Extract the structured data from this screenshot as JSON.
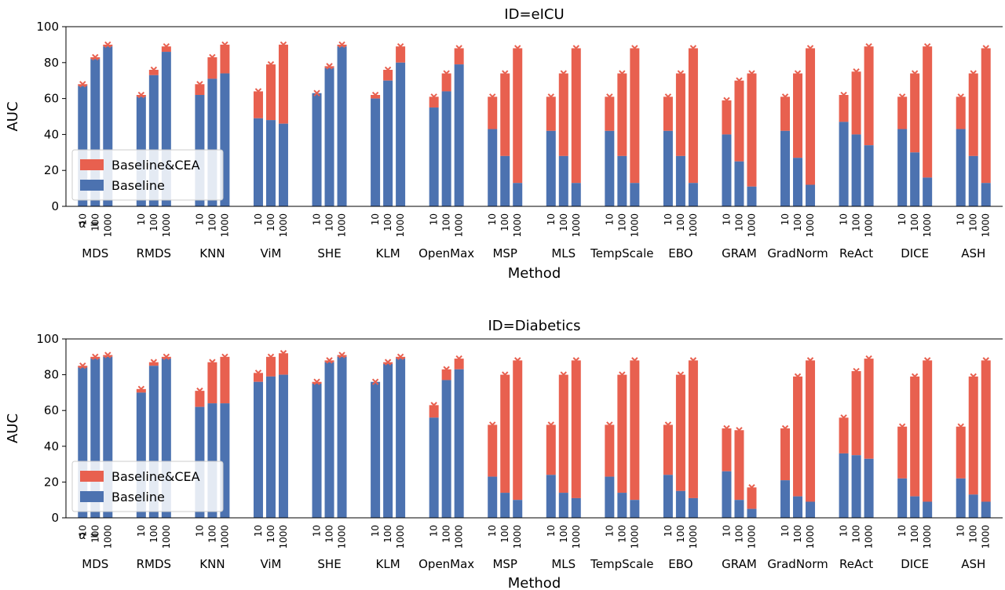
{
  "colors": {
    "baseline": "#4c72b0",
    "cea": "#e8604f",
    "marker": "#e8604f",
    "legend_edge": "#cccccc"
  },
  "chart_data": [
    {
      "type": "bar",
      "stacked": true,
      "title": "ID=eICU",
      "xlabel": "Method",
      "ylabel": "AUC",
      "ylim": [
        0,
        100
      ],
      "yticks": [
        0,
        20,
        40,
        60,
        80,
        100
      ],
      "alpha_prefix": "α =",
      "alphas": [
        "10",
        "100",
        "1000"
      ],
      "legend": {
        "position": "lower-left",
        "entries": [
          "Baseline&CEA",
          "Baseline"
        ]
      },
      "series": [
        {
          "name": "Baseline&CEA",
          "values": [
            [
              68,
              83,
              90
            ],
            [
              62,
              76,
              89
            ],
            [
              68,
              83,
              90
            ],
            [
              64,
              79,
              90
            ],
            [
              63,
              78,
              90
            ],
            [
              62,
              76,
              89
            ],
            [
              61,
              74,
              88
            ],
            [
              61,
              74,
              88
            ],
            [
              61,
              74,
              88
            ],
            [
              61,
              74,
              88
            ],
            [
              61,
              74,
              88
            ],
            [
              59,
              70,
              74
            ],
            [
              61,
              74,
              88
            ],
            [
              62,
              75,
              89
            ],
            [
              61,
              74,
              89
            ],
            [
              61,
              74,
              88
            ]
          ]
        },
        {
          "name": "Baseline",
          "values": [
            [
              67,
              82,
              89
            ],
            [
              61,
              73,
              86
            ],
            [
              62,
              71,
              74
            ],
            [
              49,
              48,
              46
            ],
            [
              63,
              77,
              89
            ],
            [
              60,
              70,
              80
            ],
            [
              55,
              64,
              79
            ],
            [
              43,
              28,
              13
            ],
            [
              42,
              28,
              13
            ],
            [
              42,
              28,
              13
            ],
            [
              42,
              28,
              13
            ],
            [
              40,
              25,
              11
            ],
            [
              42,
              27,
              12
            ],
            [
              47,
              40,
              34
            ],
            [
              43,
              30,
              16
            ],
            [
              43,
              28,
              13
            ]
          ]
        }
      ],
      "categories": [
        "MDS",
        "RMDS",
        "KNN",
        "ViM",
        "SHE",
        "KLM",
        "OpenMax",
        "MSP",
        "MLS",
        "TempScale",
        "EBO",
        "GRAM",
        "GradNorm",
        "ReAct",
        "DICE",
        "ASH"
      ]
    },
    {
      "type": "bar",
      "stacked": true,
      "title": "ID=Diabetics",
      "xlabel": "Method",
      "ylabel": "AUC",
      "ylim": [
        0,
        100
      ],
      "yticks": [
        0,
        20,
        40,
        60,
        80,
        100
      ],
      "alpha_prefix": "α =",
      "alphas": [
        "10",
        "100",
        "1000"
      ],
      "legend": {
        "position": "lower-left",
        "entries": [
          "Baseline&CEA",
          "Baseline"
        ]
      },
      "series": [
        {
          "name": "Baseline&CEA",
          "values": [
            [
              85,
              90,
              91
            ],
            [
              72,
              87,
              90
            ],
            [
              71,
              87,
              90
            ],
            [
              81,
              90,
              92
            ],
            [
              76,
              88,
              91
            ],
            [
              76,
              87,
              90
            ],
            [
              63,
              83,
              89
            ],
            [
              52,
              80,
              88
            ],
            [
              52,
              80,
              88
            ],
            [
              52,
              80,
              88
            ],
            [
              52,
              80,
              88
            ],
            [
              50,
              49,
              17
            ],
            [
              50,
              79,
              88
            ],
            [
              56,
              82,
              89
            ],
            [
              51,
              79,
              88
            ],
            [
              51,
              79,
              88
            ]
          ]
        },
        {
          "name": "Baseline",
          "values": [
            [
              84,
              89,
              90
            ],
            [
              70,
              85,
              89
            ],
            [
              62,
              64,
              64
            ],
            [
              76,
              79,
              80
            ],
            [
              75,
              87,
              90
            ],
            [
              76,
              86,
              89
            ],
            [
              56,
              77,
              83
            ],
            [
              23,
              14,
              10
            ],
            [
              24,
              14,
              11
            ],
            [
              23,
              14,
              10
            ],
            [
              24,
              15,
              11
            ],
            [
              26,
              10,
              5
            ],
            [
              21,
              12,
              9
            ],
            [
              36,
              35,
              33
            ],
            [
              22,
              12,
              9
            ],
            [
              22,
              13,
              9
            ]
          ]
        }
      ],
      "categories": [
        "MDS",
        "RMDS",
        "KNN",
        "ViM",
        "SHE",
        "KLM",
        "OpenMax",
        "MSP",
        "MLS",
        "TempScale",
        "EBO",
        "GRAM",
        "GradNorm",
        "ReAct",
        "DICE",
        "ASH"
      ]
    }
  ]
}
